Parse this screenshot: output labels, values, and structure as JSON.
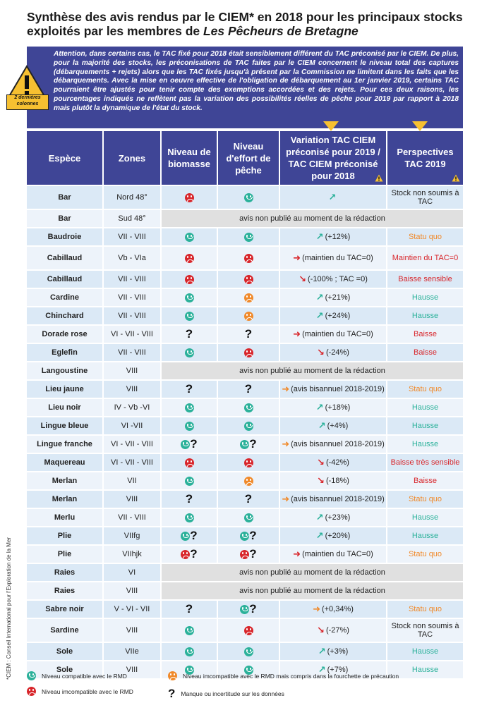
{
  "title_part1": "Synthèse des avis rendus par le CIEM* en 2018 pour les principaux stocks exploités par les membres de ",
  "title_italic": "Les Pêcheurs de Bretagne",
  "warning_text": "Attention, dans certains cas, le TAC fixé pour 2018 était sensiblement différent du TAC préconisé par le CIEM. De plus, pour la majorité des stocks, les préconisations de TAC faites par le CIEM concernent le niveau total des captures (débarquements + rejets) alors que les TAC fixés jusqu'à présent par la Commission ne limitent dans les faits que les débarquements. Avec la mise en oeuvre effective de l'obligation de débarquement au 1er janvier 2019, certains TAC pourraient être ajustés pour tenir compte des exemptions accordées et des rejets. Pour ces deux raisons, les pourcentages indiqués ne reflètent pas la variation des possibilités réelles de pêche pour 2019 par rapport à 2018 mais plutôt la dynamique de l'état du stock.",
  "warning_caption": "2 dernières colonnes",
  "headers": {
    "espece": "Espèce",
    "zones": "Zones",
    "biomasse": "Niveau de biomasse",
    "effort": "Niveau d'effort de pêche",
    "variation": "Variation TAC CIEM préconisé pour 2019 / TAC CIEM préconisé pour 2018",
    "perspectives": "Perspectives TAC 2019"
  },
  "np_text": "avis non publié au moment de la rédaction",
  "rows": [
    {
      "espece": "Bar",
      "zone": "Nord 48°",
      "bio": "r",
      "eff": "g",
      "arrow": "up",
      "arrowColor": "g",
      "var": "",
      "persp": "Stock non soumis à TAC",
      "pc": "k",
      "tall": true
    },
    {
      "espece": "Bar",
      "zone": "Sud 48°",
      "np": true
    },
    {
      "espece": "Baudroie",
      "zone": "VII - VIII",
      "bio": "g",
      "eff": "g",
      "arrow": "up",
      "arrowColor": "g",
      "var": "(+12%)",
      "persp": "Statu quo",
      "pc": "o"
    },
    {
      "espece": "Cabillaud",
      "zone": "Vb - VIa",
      "bio": "r",
      "eff": "r",
      "arrow": "right",
      "arrowColor": "r",
      "var": "(maintien du TAC=0)",
      "persp": "Maintien du TAC=0",
      "pc": "r",
      "tall": true
    },
    {
      "espece": "Cabillaud",
      "zone": "VII - VIII",
      "bio": "r",
      "eff": "r",
      "arrow": "down",
      "arrowColor": "r",
      "var": "(-100% ; TAC =0)",
      "persp": "Baisse sensible",
      "pc": "r"
    },
    {
      "espece": "Cardine",
      "zone": "VII - VIII",
      "bio": "g",
      "eff": "o",
      "arrow": "up",
      "arrowColor": "g",
      "var": "(+21%)",
      "persp": "Hausse",
      "pc": "g"
    },
    {
      "espece": "Chinchard",
      "zone": "VII - VIII",
      "bio": "g",
      "eff": "o",
      "arrow": "up",
      "arrowColor": "g",
      "var": "(+24%)",
      "persp": "Hausse",
      "pc": "g"
    },
    {
      "espece": "Dorade rose",
      "zone": "VI - VII - VIII",
      "bio": "q",
      "eff": "q",
      "arrow": "right",
      "arrowColor": "r",
      "var": "(maintien du TAC=0)",
      "persp": "Baisse",
      "pc": "r"
    },
    {
      "espece": "Eglefin",
      "zone": "VII - VIII",
      "bio": "g",
      "eff": "r",
      "arrow": "down",
      "arrowColor": "r",
      "var": "(-24%)",
      "persp": "Baisse",
      "pc": "r"
    },
    {
      "espece": "Langoustine",
      "zone": "VIII",
      "np": true
    },
    {
      "espece": "Lieu jaune",
      "zone": "VIII",
      "bio": "q",
      "eff": "q",
      "arrow": "right",
      "arrowColor": "o",
      "var": "(avis bisannuel 2018-2019)",
      "persp": "Statu quo",
      "pc": "o"
    },
    {
      "espece": "Lieu noir",
      "zone": "IV - Vb -VI",
      "bio": "g",
      "eff": "g",
      "arrow": "up",
      "arrowColor": "g",
      "var": "(+18%)",
      "persp": "Hausse",
      "pc": "g"
    },
    {
      "espece": "Lingue bleue",
      "zone": "VI -VII",
      "bio": "g",
      "eff": "g",
      "arrow": "up",
      "arrowColor": "g",
      "var": "(+4%)",
      "persp": "Hausse",
      "pc": "g"
    },
    {
      "espece": "Lingue franche",
      "zone": "VI - VII - VIII",
      "bio": "gq",
      "eff": "gq",
      "arrow": "right",
      "arrowColor": "o",
      "var": "(avis bisannuel 2018-2019)",
      "persp": "Hausse",
      "pc": "g"
    },
    {
      "espece": "Maquereau",
      "zone": "VI - VII - VIII",
      "bio": "r",
      "eff": "r",
      "arrow": "down",
      "arrowColor": "r",
      "var": "(-42%)",
      "persp": "Baisse très sensible",
      "pc": "r"
    },
    {
      "espece": "Merlan",
      "zone": "VII",
      "bio": "g",
      "eff": "o",
      "arrow": "down",
      "arrowColor": "r",
      "var": "(-18%)",
      "persp": "Baisse",
      "pc": "r"
    },
    {
      "espece": "Merlan",
      "zone": "VIII",
      "bio": "q",
      "eff": "q",
      "arrow": "right",
      "arrowColor": "o",
      "var": "(avis bisannuel 2018-2019)",
      "persp": "Statu quo",
      "pc": "o"
    },
    {
      "espece": "Merlu",
      "zone": "VII - VIII",
      "bio": "g",
      "eff": "g",
      "arrow": "up",
      "arrowColor": "g",
      "var": "(+23%)",
      "persp": "Hausse",
      "pc": "g"
    },
    {
      "espece": "Plie",
      "zone": "VIIfg",
      "bio": "gq",
      "eff": "gq",
      "arrow": "up",
      "arrowColor": "g",
      "var": "(+20%)",
      "persp": "Hausse",
      "pc": "g"
    },
    {
      "espece": "Plie",
      "zone": "VIIhjk",
      "bio": "rq",
      "eff": "rq",
      "arrow": "right",
      "arrowColor": "r",
      "var": "(maintien du TAC=0)",
      "persp": "Statu quo",
      "pc": "o"
    },
    {
      "espece": "Raies",
      "zone": "VI",
      "np": true
    },
    {
      "espece": "Raies",
      "zone": "VIII",
      "np": true
    },
    {
      "espece": "Sabre noir",
      "zone": "V - VI - VII",
      "bio": "q",
      "eff": "gq",
      "arrow": "right",
      "arrowColor": "o",
      "var": "(+0,34%)",
      "persp": "Statu quo",
      "pc": "o"
    },
    {
      "espece": "Sardine",
      "zone": "VIII",
      "bio": "g",
      "eff": "r",
      "arrow": "down",
      "arrowColor": "r",
      "var": "(-27%)",
      "persp": "Stock non soumis à TAC",
      "pc": "k",
      "tall": true
    },
    {
      "espece": "Sole",
      "zone": "VIIe",
      "bio": "g",
      "eff": "g",
      "arrow": "up",
      "arrowColor": "g",
      "var": "(+3%)",
      "persp": "Hausse",
      "pc": "g"
    },
    {
      "espece": "Sole",
      "zone": "VIII",
      "bio": "g",
      "eff": "g",
      "arrow": "up",
      "arrowColor": "g",
      "var": "(+7%)",
      "persp": "Hausse",
      "pc": "g"
    }
  ],
  "legend": {
    "green": "Niveau compatible avec le RMD",
    "red": "Niveau imcompatible avec le RMD",
    "orange": "Niveau imcompatible avec le RMD mais compris dans la fourchette de précaution",
    "question": "Manque ou incertitude sur les données"
  },
  "side_note": "*CIEM : Conseil International pour l'Exploration de la Mer",
  "colors": {
    "navy": "#3f4596",
    "green": "#2bb19a",
    "red": "#d8262b",
    "orange": "#f08a2b",
    "yellow": "#f6c031"
  }
}
